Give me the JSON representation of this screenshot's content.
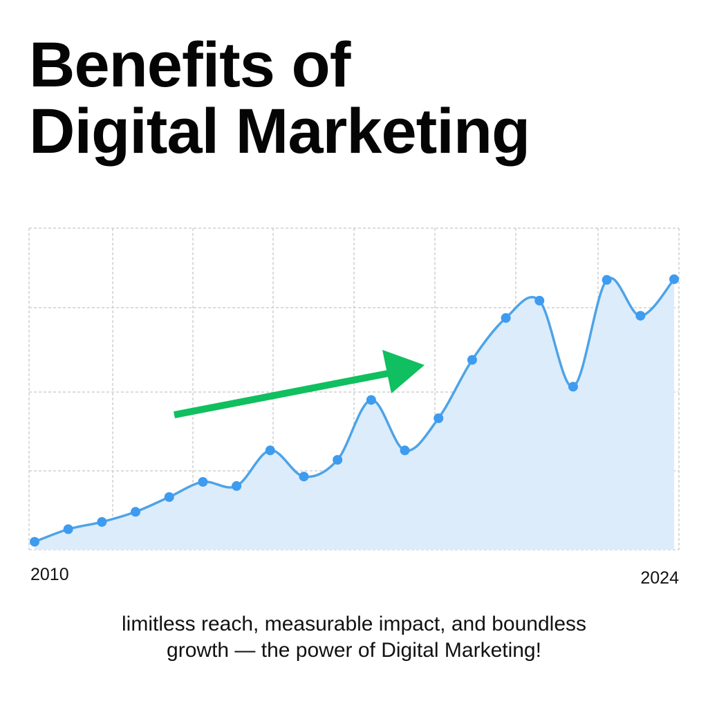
{
  "title": {
    "line1": "Benefits of",
    "line2": "Digital Marketing"
  },
  "caption": {
    "line1": "limitless reach, measurable impact, and boundless",
    "line2": "growth — the power of Digital Marketing!"
  },
  "colors": {
    "line": "#4ea3e6",
    "point": "#3d9bf0",
    "area": "#dcecfb",
    "grid": "#cfcfcf",
    "arrow": "#10bf5f"
  },
  "chart_data": {
    "type": "area",
    "xlabel": "",
    "ylabel": "",
    "x_tick_labels": [
      "2010",
      "2024"
    ],
    "x": [
      0,
      1,
      2,
      3,
      4,
      5,
      6,
      7,
      8,
      9,
      10,
      11,
      12,
      13,
      14,
      15,
      16,
      17,
      18,
      19
    ],
    "values": [
      0.5,
      4.5,
      6.8,
      10,
      14.7,
      19.5,
      18.2,
      29.5,
      21.2,
      26.5,
      45.5,
      29.5,
      39.7,
      58.2,
      71.5,
      77,
      49.7,
      83.6,
      72.2,
      83.8
    ],
    "ylim": [
      -2,
      100
    ],
    "grid": true,
    "annotations": [
      {
        "type": "arrow",
        "description": "upward trend arrow"
      }
    ]
  }
}
